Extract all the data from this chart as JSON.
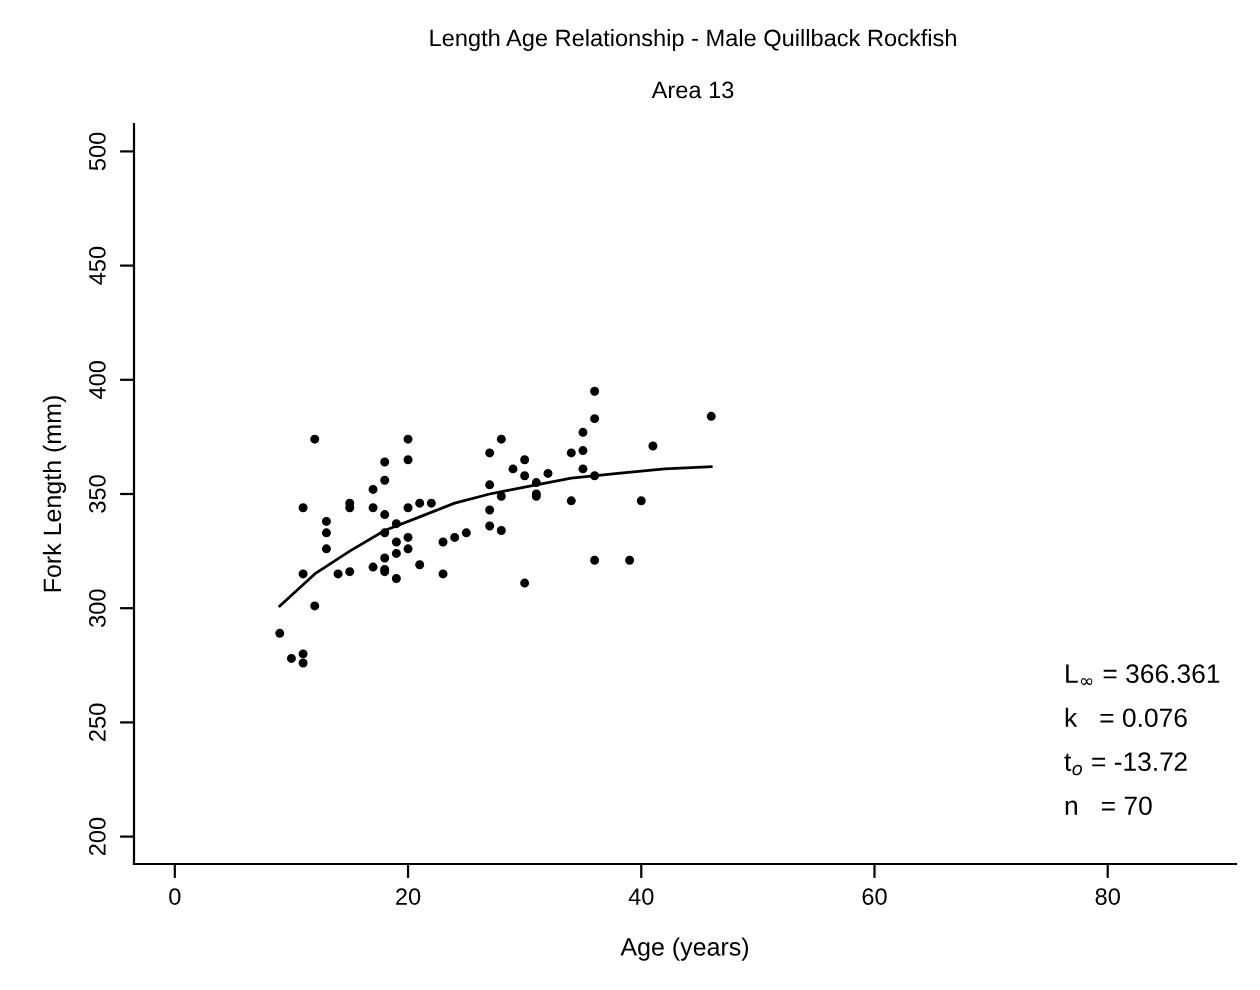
{
  "chart_data": {
    "type": "scatter",
    "title": "Length Age Relationship - Male Quillback Rockfish",
    "subtitle": "Area 13",
    "xlabel": "Age (years)",
    "ylabel": "Fork Length (mm)",
    "xlim": [
      -3.5,
      91
    ],
    "ylim": [
      188,
      512
    ],
    "xticks": [
      0,
      20,
      40,
      60,
      80
    ],
    "yticks": [
      200,
      250,
      300,
      350,
      400,
      450,
      500
    ],
    "grid": false,
    "legend": false,
    "annotations": [
      "L$_{∞}$ = 366.361",
      "k   = 0.076",
      "t$_{o}$ = -13.72",
      "n   = 70"
    ],
    "series": [
      {
        "color": "#000000",
        "marker": "circle",
        "x": [
          9,
          10,
          11,
          11,
          11,
          11,
          12,
          12,
          13,
          13,
          13,
          14,
          15,
          15,
          15,
          17,
          17,
          17,
          18,
          18,
          18,
          18,
          18,
          18,
          18,
          19,
          19,
          19,
          19,
          20,
          20,
          20,
          20,
          20,
          21,
          22,
          21,
          23,
          23,
          24,
          25,
          27,
          27,
          27,
          27,
          28,
          28,
          28,
          29,
          30,
          30,
          30,
          31,
          31,
          31,
          32,
          34,
          34,
          35,
          35,
          35,
          36,
          36,
          36,
          36,
          39,
          40,
          41,
          46
        ],
        "values": [
          289,
          278,
          280,
          276,
          315,
          344,
          374,
          301,
          338,
          333,
          326,
          315,
          316,
          346,
          344,
          352,
          344,
          318,
          364,
          356,
          341,
          333,
          322,
          317,
          316,
          337,
          329,
          324,
          313,
          374,
          365,
          344,
          331,
          326,
          346,
          346,
          319,
          329,
          315,
          331,
          333,
          368,
          354,
          343,
          336,
          374,
          349,
          334,
          361,
          365,
          358,
          311,
          355,
          350,
          349,
          359,
          368,
          347,
          377,
          369,
          361,
          395,
          383,
          358,
          321,
          321,
          347,
          371,
          384
        ]
      },
      {
        "type": "line",
        "color": "#000000",
        "marker": "none",
        "line_style": "solid",
        "x": [
          9,
          12,
          15,
          18,
          21,
          24,
          27,
          30,
          34,
          38,
          42,
          46
        ],
        "values": [
          301,
          315,
          325,
          334,
          340,
          346,
          350,
          353,
          357,
          359,
          361,
          362
        ]
      }
    ]
  }
}
